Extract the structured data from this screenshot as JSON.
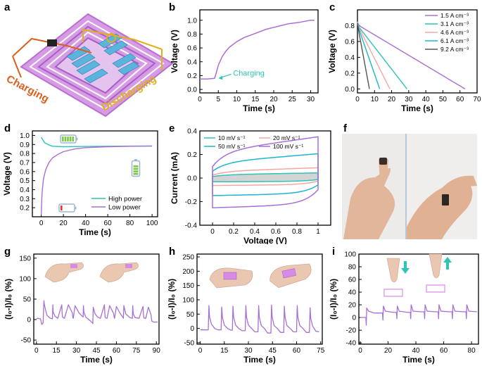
{
  "panel_labels": {
    "a": "a",
    "b": "b",
    "c": "c",
    "d": "d",
    "e": "e",
    "f": "f",
    "g": "g",
    "h": "h",
    "i": "i"
  },
  "diagram_a": {
    "charging_label": "Charging",
    "discharging_label": "Discharging",
    "colors": {
      "charging": "#d9601e",
      "discharging": "#e0b01a",
      "coil": "#c47bd8",
      "cell": "#5bb4dc"
    }
  },
  "colors": {
    "purple": "#a86fd6",
    "teal": "#2ec4b6",
    "pink": "#f2a7a0",
    "cyan": "#1bb7cf",
    "gray": "#555555",
    "battery_green": "#7ac943",
    "battery_red": "#e03a2f"
  },
  "chart_data": [
    {
      "id": "b",
      "type": "line",
      "xlabel": "Time (s)",
      "ylabel": "Voltage (V)",
      "xlim": [
        0,
        32
      ],
      "ylim": [
        -0.05,
        1.15
      ],
      "xticks": [
        0,
        5,
        10,
        15,
        20,
        25,
        30
      ],
      "yticks": [
        0.0,
        0.2,
        0.4,
        0.6,
        0.8,
        1.0
      ],
      "annotation": "Charging",
      "series": [
        {
          "x": [
            0,
            1,
            2,
            3,
            4,
            4.5,
            5,
            6,
            7,
            8,
            10,
            12,
            15,
            18,
            21,
            24,
            27,
            30,
            31
          ],
          "y": [
            0.15,
            0.15,
            0.15,
            0.155,
            0.16,
            0.25,
            0.35,
            0.47,
            0.55,
            0.61,
            0.69,
            0.75,
            0.81,
            0.87,
            0.91,
            0.95,
            0.97,
            1.0,
            1.0
          ]
        }
      ]
    },
    {
      "id": "c",
      "type": "line",
      "xlabel": "Time (s)",
      "ylabel": "Voltage (V)",
      "xlim": [
        0,
        70
      ],
      "ylim": [
        -0.05,
        1.0
      ],
      "xticks": [
        0,
        10,
        20,
        30,
        40,
        50,
        60,
        70
      ],
      "yticks": [
        0.0,
        0.2,
        0.4,
        0.6,
        0.8
      ],
      "series": [
        {
          "name": "1.5 A cm⁻³",
          "x": [
            0,
            1,
            63
          ],
          "y": [
            0.85,
            0.8,
            0
          ]
        },
        {
          "name": "3.1 A cm⁻³",
          "x": [
            0,
            1,
            29
          ],
          "y": [
            0.85,
            0.78,
            0
          ]
        },
        {
          "name": "4.6 A cm⁻³",
          "x": [
            0,
            1,
            19
          ],
          "y": [
            0.85,
            0.77,
            0
          ]
        },
        {
          "name": "6.1 A cm⁻³",
          "x": [
            0,
            1,
            13
          ],
          "y": [
            0.84,
            0.75,
            0
          ]
        },
        {
          "name": "9.2 A cm⁻³",
          "x": [
            0,
            1,
            7
          ],
          "y": [
            0.83,
            0.7,
            0
          ]
        }
      ]
    },
    {
      "id": "d",
      "type": "line",
      "xlabel": "Time (s)",
      "ylabel": "Voltage (V)",
      "xlim": [
        -8,
        105
      ],
      "ylim": [
        0.1,
        1.05
      ],
      "xticks": [
        0,
        20,
        40,
        60,
        80,
        100
      ],
      "yticks": [
        0.2,
        0.3,
        0.4,
        0.5,
        0.6,
        0.7,
        0.8,
        0.9,
        1.0
      ],
      "series": [
        {
          "name": "High power",
          "x": [
            0,
            3,
            6,
            10,
            20,
            40,
            60,
            80,
            100
          ],
          "y": [
            0.98,
            0.92,
            0.9,
            0.88,
            0.875,
            0.878,
            0.88,
            0.882,
            0.883
          ]
        },
        {
          "name": "Low  power",
          "x": [
            0,
            0.5,
            1,
            2,
            4,
            7,
            10,
            15,
            20,
            30,
            40,
            60,
            80,
            100
          ],
          "y": [
            0.12,
            0.3,
            0.4,
            0.52,
            0.62,
            0.7,
            0.75,
            0.79,
            0.82,
            0.85,
            0.865,
            0.875,
            0.88,
            0.882
          ]
        }
      ]
    },
    {
      "id": "e",
      "type": "line",
      "xlabel": "Voltage (V)",
      "ylabel": "Current (mA)",
      "xlim": [
        -0.12,
        1.12
      ],
      "ylim": [
        -0.4,
        0.4
      ],
      "xticks": [
        0.0,
        0.2,
        0.4,
        0.6,
        0.8,
        1.0
      ],
      "yticks": [
        -0.4,
        -0.2,
        0.0,
        0.2,
        0.4
      ],
      "series": [
        {
          "name": "10 mV s⁻¹",
          "amp": 0.035
        },
        {
          "name": "20 mV s⁻¹",
          "amp": 0.07
        },
        {
          "name": "50 mV s⁻¹",
          "amp": 0.165
        },
        {
          "name": "100 mV s⁻¹",
          "amp": 0.28
        }
      ]
    },
    {
      "id": "g",
      "type": "line",
      "xlabel": "Time (s)",
      "ylabel": "(I₀-I)/I₀ (%)",
      "xlim": [
        -2,
        92
      ],
      "ylim": [
        -60,
        160
      ],
      "xticks": [
        0,
        15,
        30,
        45,
        60,
        75,
        90
      ],
      "yticks": [
        -50,
        0,
        50,
        100,
        150
      ],
      "series": [
        {
          "x": [
            0,
            1,
            3,
            4,
            5,
            5.6,
            6,
            7,
            8,
            10,
            12,
            12.3,
            12.6,
            14,
            16,
            19,
            19.3,
            19.6,
            21,
            24,
            27,
            27.3,
            27.6,
            29,
            32,
            35,
            35.3,
            35.6,
            37,
            39,
            42,
            42.3,
            42.6,
            44,
            46,
            48,
            51,
            51.3,
            51.6,
            53,
            55,
            58,
            58.3,
            58.6,
            60,
            63,
            65,
            65.3,
            65.6,
            67,
            70,
            72,
            72.3,
            72.6,
            74,
            77,
            80,
            80.3,
            80.6,
            82,
            84,
            86,
            86.3,
            86.6,
            88,
            90,
            91
          ],
          "y": [
            2,
            3,
            2,
            -12,
            -8,
            46,
            36,
            22,
            10,
            4,
            2,
            36,
            18,
            8,
            3,
            36,
            16,
            6,
            3,
            36,
            16,
            5,
            3,
            34,
            16,
            6,
            34,
            18,
            6,
            1,
            -8,
            -10,
            30,
            14,
            6,
            3,
            36,
            16,
            5,
            3,
            34,
            14,
            6,
            3,
            32,
            14,
            5,
            3,
            34,
            14,
            5,
            3,
            34,
            14,
            5,
            3,
            32,
            14,
            4,
            3,
            30,
            12,
            3,
            -4,
            -6,
            -6,
            -6
          ]
        }
      ]
    },
    {
      "id": "h",
      "type": "line",
      "xlabel": "Time (s)",
      "ylabel": "(I₀-I)/I₀ (%)",
      "xlim": [
        -2,
        76
      ],
      "ylim": [
        -55,
        260
      ],
      "xticks": [
        0,
        15,
        30,
        45,
        60,
        75
      ],
      "yticks": [
        -50,
        0,
        50,
        100,
        150,
        200,
        250
      ],
      "series": [
        {
          "x": [
            0,
            3,
            5,
            5.4,
            5.8,
            7,
            9,
            11,
            13,
            13.4,
            13.8,
            15,
            17,
            19,
            20,
            20.4,
            20.8,
            22,
            24,
            26,
            28,
            28.4,
            28.8,
            30,
            32,
            34,
            36,
            36.4,
            36.8,
            38,
            40,
            42,
            44,
            44.4,
            44.8,
            46,
            48,
            50,
            52,
            52.4,
            52.8,
            54,
            56,
            58,
            60,
            60.4,
            60.8,
            62,
            64,
            66,
            68,
            68.4,
            68.8,
            70,
            72,
            74
          ],
          "y": [
            -5,
            -5,
            -5,
            80,
            40,
            15,
            0,
            -5,
            -5,
            75,
            38,
            12,
            0,
            -6,
            -6,
            78,
            40,
            12,
            0,
            -8,
            -8,
            80,
            40,
            12,
            0,
            -12,
            -12,
            80,
            40,
            10,
            0,
            -16,
            -16,
            82,
            40,
            10,
            0,
            -14,
            -14,
            78,
            40,
            10,
            0,
            -12,
            -12,
            80,
            40,
            10,
            0,
            -14,
            -14,
            72,
            35,
            8,
            -10,
            -12
          ]
        }
      ]
    },
    {
      "id": "i",
      "type": "line",
      "xlabel": "Time (s)",
      "ylabel": "(I₀-I)/I₀ (%)",
      "xlim": [
        -1,
        85
      ],
      "ylim": [
        -42,
        100
      ],
      "xticks": [
        0,
        20,
        40,
        60,
        80
      ],
      "yticks": [
        -40,
        -20,
        0,
        20,
        40,
        60,
        80,
        100
      ],
      "series": [
        {
          "x": [
            0,
            3,
            4,
            4.3,
            4.6,
            6,
            10,
            16,
            16.3,
            16.6,
            18,
            24,
            26,
            26.3,
            26.6,
            28,
            34,
            36,
            36.3,
            36.6,
            38,
            44,
            46,
            46.3,
            46.6,
            48,
            54,
            56,
            56.3,
            56.6,
            58,
            64,
            66,
            66.3,
            66.6,
            68,
            74,
            76,
            76.3,
            76.6,
            78,
            84
          ],
          "y": [
            0,
            0,
            0,
            -12,
            15,
            10,
            7,
            7,
            -4,
            18,
            10,
            8,
            8,
            -2,
            18,
            10,
            8,
            8,
            -2,
            20,
            10,
            9,
            9,
            -2,
            20,
            10,
            9,
            9,
            -2,
            20,
            10,
            9,
            9,
            -2,
            20,
            10,
            9,
            9,
            -2,
            20,
            10,
            9
          ]
        }
      ]
    }
  ]
}
